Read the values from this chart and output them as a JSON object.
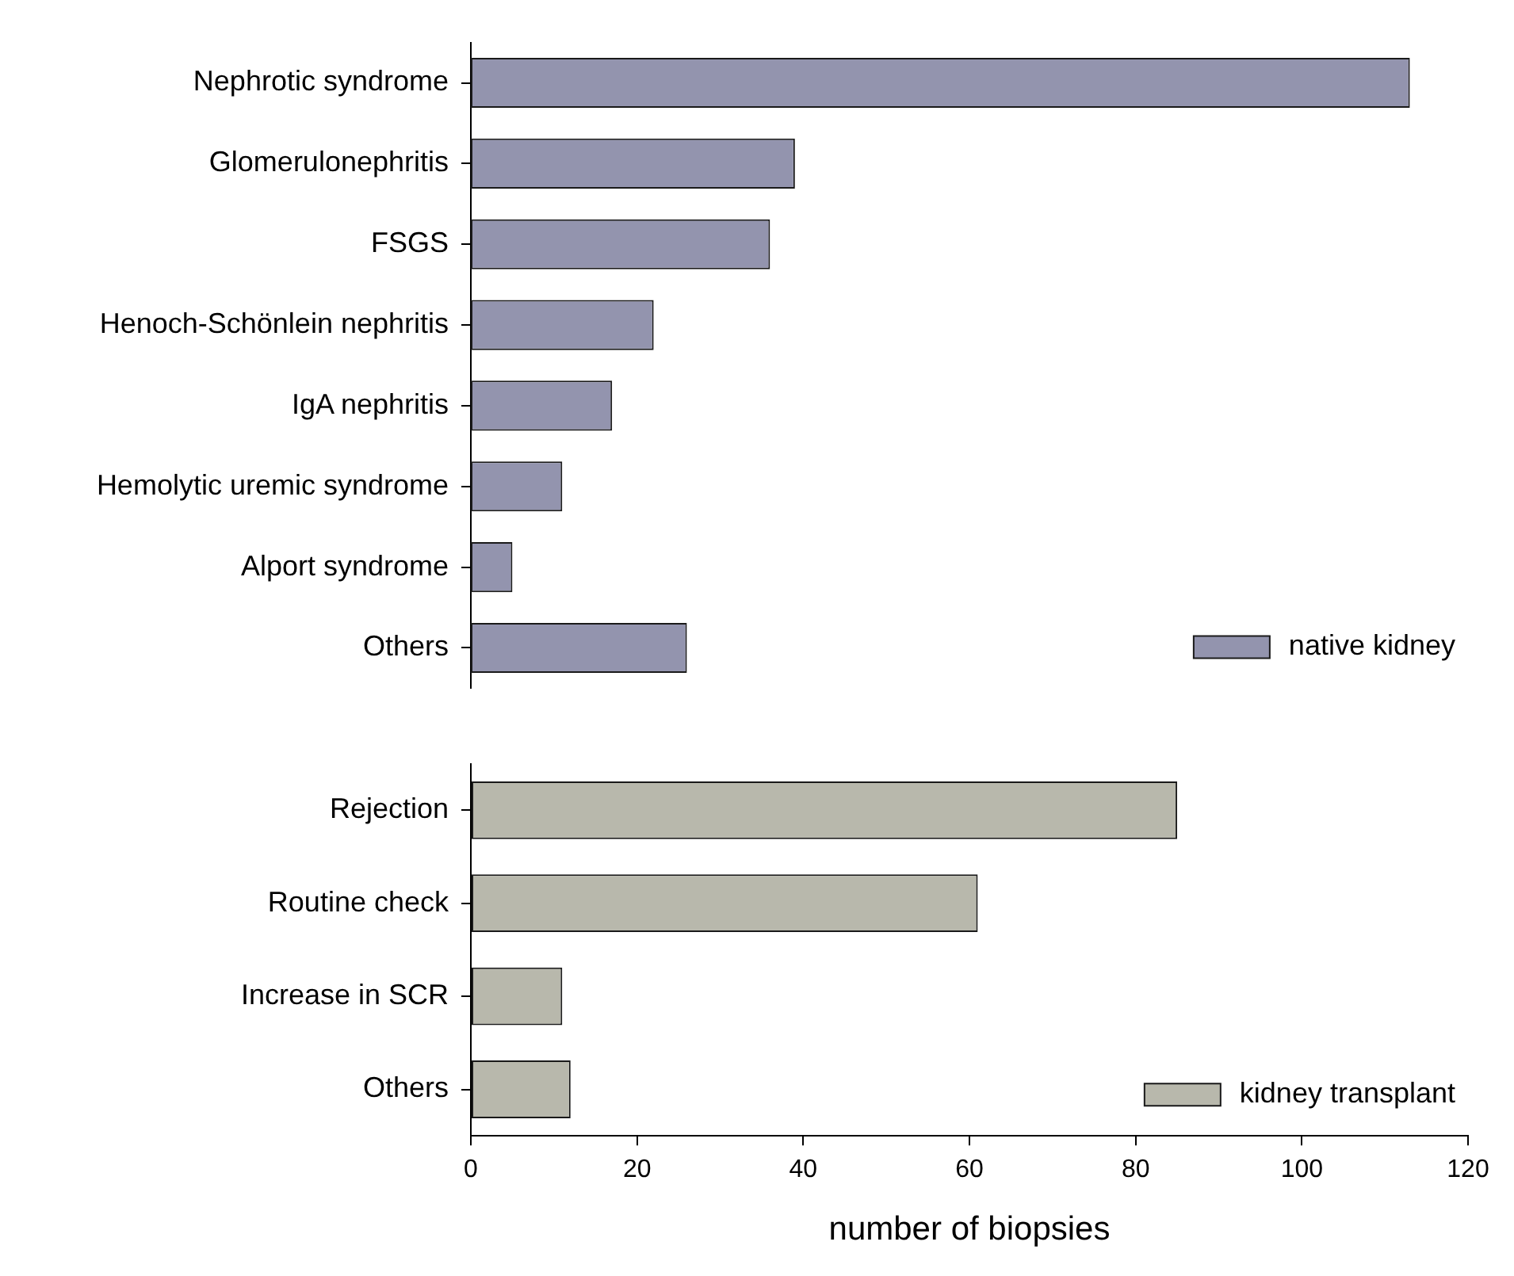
{
  "chart_data": [
    {
      "type": "bar",
      "orientation": "horizontal",
      "categories": [
        "Nephrotic syndrome",
        "Glomerulonephritis",
        "FSGS",
        "Henoch-Schönlein nephritis",
        "IgA nephritis",
        "Hemolytic uremic syndrome",
        "Alport syndrome",
        "Others"
      ],
      "series": [
        {
          "name": "native kidney",
          "color": "#9394ae",
          "values": [
            113,
            39,
            36,
            22,
            17,
            11,
            5,
            26
          ]
        }
      ],
      "xlim": [
        0,
        120
      ],
      "xticks": [
        0,
        20,
        40,
        60,
        80,
        100,
        120
      ],
      "tick_labels": "y",
      "legend": "bottom right"
    },
    {
      "type": "bar",
      "orientation": "horizontal",
      "categories": [
        "Rejection",
        "Routine check",
        "Increase in SCR",
        "Others"
      ],
      "series": [
        {
          "name": "kidney transplant",
          "color": "#b8b8ac",
          "values": [
            85,
            61,
            11,
            12
          ]
        }
      ],
      "xlim": [
        0,
        120
      ],
      "xticks": [
        0,
        20,
        40,
        60,
        80,
        100,
        120
      ],
      "xlabel": "number of biopsies",
      "legend": "bottom right"
    }
  ]
}
